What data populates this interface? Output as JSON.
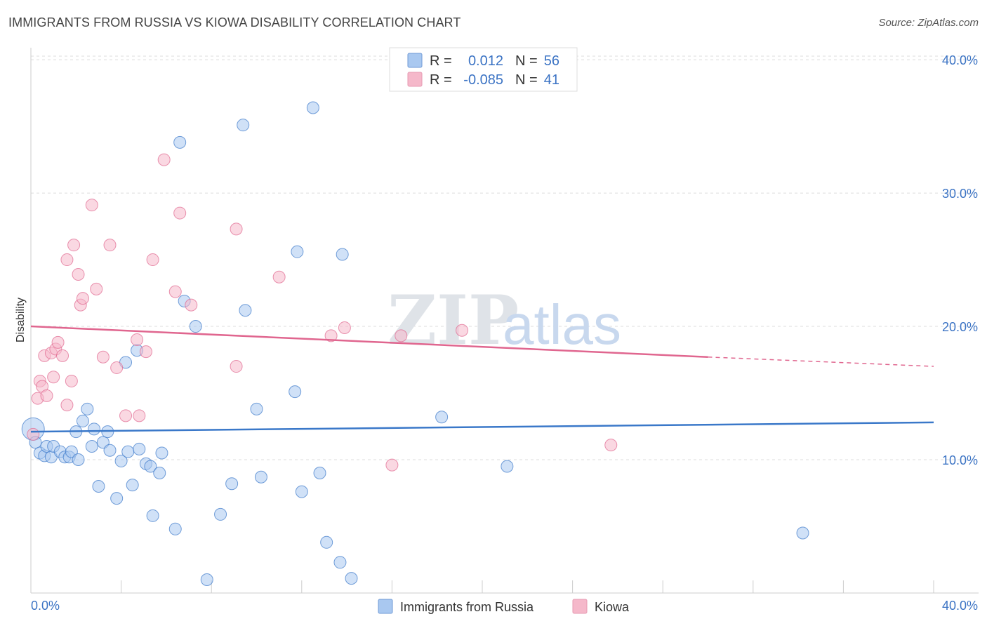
{
  "title": "IMMIGRANTS FROM RUSSIA VS KIOWA DISABILITY CORRELATION CHART",
  "source": "Source: ZipAtlas.com",
  "watermark": {
    "part1": "ZIP",
    "part2": "atlas"
  },
  "legend": {
    "rows": [
      {
        "r_label": "R =",
        "r_value": "0.012",
        "n_label": "N =",
        "n_value": "56",
        "color": "#a9c8f0"
      },
      {
        "r_label": "R =",
        "r_value": "-0.085",
        "n_label": "N =",
        "n_value": "41",
        "color": "#f5b8ca"
      }
    ]
  },
  "bottom_legend": [
    {
      "label": "Immigrants from Russia",
      "color": "#a9c8f0"
    },
    {
      "label": "Kiowa",
      "color": "#f5b8ca"
    }
  ],
  "chart_data": {
    "type": "scatter",
    "title": "IMMIGRANTS FROM RUSSIA VS KIOWA DISABILITY CORRELATION CHART",
    "xlabel": "",
    "ylabel": "Disability",
    "xlim": [
      0,
      40
    ],
    "ylim": [
      0,
      40.9
    ],
    "x_tick_labels": [
      "0.0%",
      "40.0%"
    ],
    "y_ticks": [
      10,
      20,
      30,
      40
    ],
    "y_tick_labels": [
      "10.0%",
      "20.0%",
      "30.0%",
      "40.0%"
    ],
    "grid": true,
    "series": [
      {
        "name": "Immigrants from Russia",
        "color": "#3a78c9",
        "fill": "#a9c8f0",
        "trend": {
          "x": [
            0,
            40
          ],
          "y": [
            12.1,
            12.8
          ]
        },
        "points": [
          [
            0.1,
            12.3
          ],
          [
            0.2,
            11.3
          ],
          [
            0.4,
            10.5
          ],
          [
            0.6,
            10.3
          ],
          [
            0.7,
            11.0
          ],
          [
            0.9,
            10.2
          ],
          [
            1.0,
            11.0
          ],
          [
            1.3,
            10.6
          ],
          [
            1.5,
            10.2
          ],
          [
            1.7,
            10.2
          ],
          [
            1.8,
            10.6
          ],
          [
            2.1,
            10.0
          ],
          [
            2.0,
            12.1
          ],
          [
            2.3,
            12.9
          ],
          [
            2.5,
            13.8
          ],
          [
            2.7,
            11.0
          ],
          [
            2.8,
            12.3
          ],
          [
            3.0,
            8.0
          ],
          [
            3.2,
            11.3
          ],
          [
            3.4,
            12.1
          ],
          [
            3.5,
            10.7
          ],
          [
            3.8,
            7.1
          ],
          [
            4.0,
            9.9
          ],
          [
            4.2,
            17.3
          ],
          [
            4.3,
            10.6
          ],
          [
            4.5,
            8.1
          ],
          [
            4.7,
            18.2
          ],
          [
            4.8,
            10.8
          ],
          [
            5.1,
            9.7
          ],
          [
            5.3,
            9.5
          ],
          [
            5.4,
            5.8
          ],
          [
            5.7,
            9.0
          ],
          [
            5.8,
            10.5
          ],
          [
            6.4,
            4.8
          ],
          [
            6.6,
            33.8
          ],
          [
            6.8,
            21.9
          ],
          [
            7.3,
            20.0
          ],
          [
            7.8,
            1.0
          ],
          [
            8.4,
            5.9
          ],
          [
            8.9,
            8.2
          ],
          [
            9.4,
            35.1
          ],
          [
            9.5,
            21.2
          ],
          [
            10.0,
            13.8
          ],
          [
            10.2,
            8.7
          ],
          [
            11.7,
            15.1
          ],
          [
            11.8,
            25.6
          ],
          [
            12.0,
            7.6
          ],
          [
            12.5,
            36.4
          ],
          [
            12.8,
            9.0
          ],
          [
            13.1,
            3.8
          ],
          [
            13.7,
            2.3
          ],
          [
            13.8,
            25.4
          ],
          [
            14.2,
            1.1
          ],
          [
            18.2,
            13.2
          ],
          [
            21.1,
            9.5
          ],
          [
            34.2,
            4.5
          ]
        ]
      },
      {
        "name": "Kiowa",
        "color": "#e0668f",
        "fill": "#f5b8ca",
        "trend": {
          "x": [
            0,
            30
          ],
          "y": [
            20.0,
            17.7
          ]
        },
        "trend_dashed": {
          "x": [
            30,
            40
          ],
          "y": [
            17.7,
            17.0
          ]
        },
        "points": [
          [
            0.1,
            11.9
          ],
          [
            0.3,
            14.6
          ],
          [
            0.4,
            15.9
          ],
          [
            0.5,
            15.5
          ],
          [
            0.6,
            17.8
          ],
          [
            0.7,
            14.8
          ],
          [
            0.9,
            18.0
          ],
          [
            1.0,
            16.2
          ],
          [
            1.1,
            18.3
          ],
          [
            1.2,
            18.8
          ],
          [
            1.4,
            17.8
          ],
          [
            1.6,
            14.1
          ],
          [
            1.6,
            25.0
          ],
          [
            1.8,
            15.9
          ],
          [
            1.9,
            26.1
          ],
          [
            2.1,
            23.9
          ],
          [
            2.2,
            21.6
          ],
          [
            2.3,
            22.1
          ],
          [
            2.7,
            29.1
          ],
          [
            2.9,
            22.8
          ],
          [
            3.2,
            17.7
          ],
          [
            3.5,
            26.1
          ],
          [
            3.8,
            16.9
          ],
          [
            4.2,
            13.3
          ],
          [
            4.7,
            19.0
          ],
          [
            4.8,
            13.3
          ],
          [
            5.1,
            18.1
          ],
          [
            5.4,
            25.0
          ],
          [
            5.9,
            32.5
          ],
          [
            6.4,
            22.6
          ],
          [
            6.6,
            28.5
          ],
          [
            7.1,
            21.6
          ],
          [
            9.1,
            27.3
          ],
          [
            9.1,
            17.0
          ],
          [
            11.0,
            23.7
          ],
          [
            13.3,
            19.3
          ],
          [
            13.9,
            19.9
          ],
          [
            16.0,
            9.6
          ],
          [
            16.4,
            19.3
          ],
          [
            19.1,
            19.7
          ],
          [
            25.7,
            11.1
          ]
        ]
      }
    ]
  }
}
